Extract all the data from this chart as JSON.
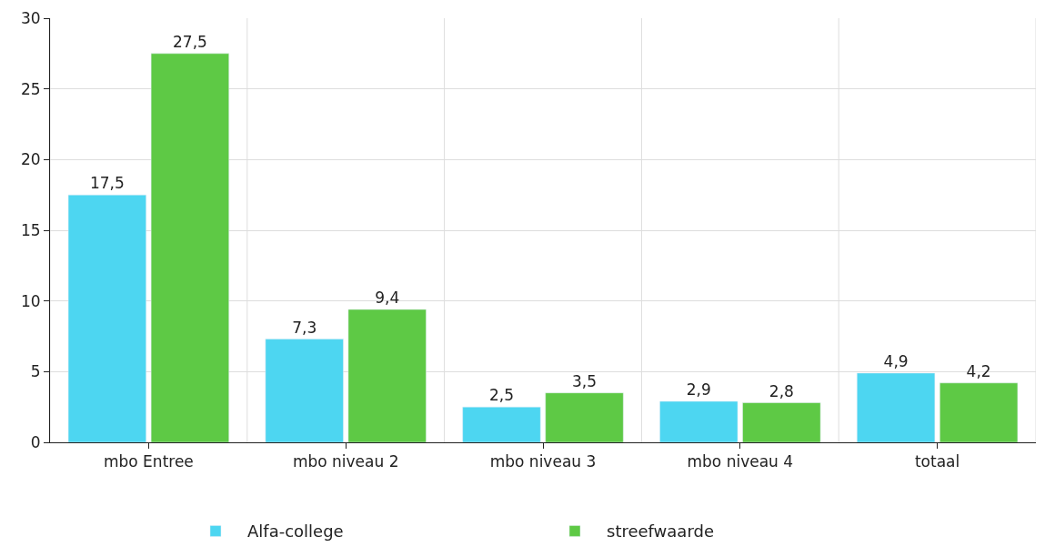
{
  "chart_data": {
    "type": "bar",
    "categories": [
      "mbo Entree",
      "mbo niveau 2",
      "mbo niveau 3",
      "mbo niveau 4",
      "totaal"
    ],
    "series": [
      {
        "name": "Alfa-college",
        "color": "#4dd6f1",
        "values": [
          17.5,
          7.3,
          2.5,
          2.9,
          4.9
        ],
        "value_labels": [
          "17,5",
          "7,3",
          "2,5",
          "2,9",
          "4,9"
        ]
      },
      {
        "name": "streefwaarde",
        "color": "#5ec945",
        "values": [
          27.5,
          9.4,
          3.5,
          2.8,
          4.2
        ],
        "value_labels": [
          "27,5",
          "9,4",
          "3,5",
          "2,8",
          "4,2"
        ]
      }
    ],
    "ylim": [
      0,
      30
    ],
    "yticks": [
      0,
      5,
      10,
      15,
      20,
      25,
      30
    ],
    "grid": true,
    "legend": "bottom"
  }
}
